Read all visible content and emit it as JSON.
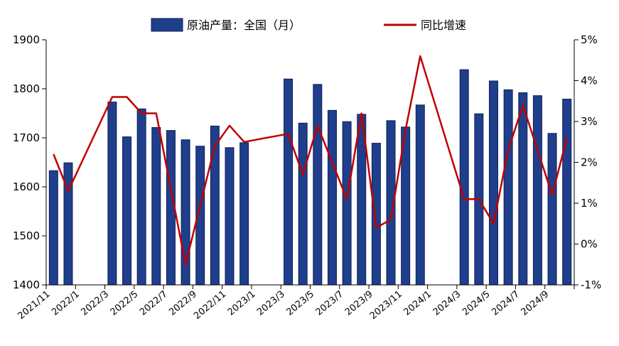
{
  "chart_data": {
    "type": "bar+line",
    "title": "",
    "legend_position": "top",
    "colors": {
      "bar": "#1f3f8c",
      "bar_edge": "#0b1f55",
      "line": "#c00000"
    },
    "x": [
      "2021/11",
      "2021/12",
      "2022/1",
      "2022/2",
      "2022/3",
      "2022/4",
      "2022/5",
      "2022/6",
      "2022/7",
      "2022/8",
      "2022/9",
      "2022/10",
      "2022/11",
      "2022/12",
      "2023/1",
      "2023/2",
      "2023/3",
      "2023/4",
      "2023/5",
      "2023/6",
      "2023/7",
      "2023/8",
      "2023/9",
      "2023/10",
      "2023/11",
      "2023/12",
      "2024/1",
      "2024/2",
      "2024/3",
      "2024/4",
      "2024/5",
      "2024/6",
      "2024/7",
      "2024/8",
      "2024/9",
      "2024/10"
    ],
    "x_tick_labels": [
      "2021/11",
      "2022/1",
      "2022/3",
      "2022/5",
      "2022/7",
      "2022/9",
      "2022/11",
      "2023/1",
      "2023/3",
      "2023/5",
      "2023/7",
      "2023/9",
      "2023/11",
      "2024/1",
      "2024/3",
      "2024/5",
      "2024/7",
      "2024/9"
    ],
    "series": [
      {
        "name": "原油产量：全国（月）",
        "type": "bar",
        "axis": "left",
        "values": [
          1633,
          1649,
          null,
          null,
          1773,
          1702,
          1759,
          1721,
          1715,
          1696,
          1683,
          1724,
          1680,
          1690,
          null,
          null,
          1820,
          1730,
          1809,
          1756,
          1733,
          1748,
          1689,
          1735,
          1722,
          1767,
          null,
          null,
          1839,
          1749,
          1816,
          1798,
          1792,
          1786,
          1709,
          1779
        ]
      },
      {
        "name": "同比增速",
        "type": "line",
        "axis": "right",
        "values": [
          2.2,
          1.3,
          null,
          null,
          3.6,
          3.6,
          3.2,
          3.2,
          null,
          -0.5,
          null,
          2.4,
          2.9,
          2.5,
          null,
          null,
          2.7,
          1.7,
          2.9,
          2.0,
          1.1,
          3.2,
          0.4,
          0.6,
          2.8,
          4.6,
          null,
          null,
          1.1,
          1.1,
          0.5,
          2.3,
          3.4,
          null,
          1.2,
          2.6
        ]
      }
    ],
    "y_left": {
      "min": 1400,
      "max": 1900,
      "ticks": [
        1400,
        1500,
        1600,
        1700,
        1800,
        1900
      ]
    },
    "y_right": {
      "min": -1,
      "max": 5,
      "ticks": [
        -1,
        0,
        1,
        2,
        3,
        4,
        5
      ],
      "tick_labels": [
        "-1%",
        "0%",
        "1%",
        "2%",
        "3%",
        "4%",
        "5%"
      ]
    }
  }
}
